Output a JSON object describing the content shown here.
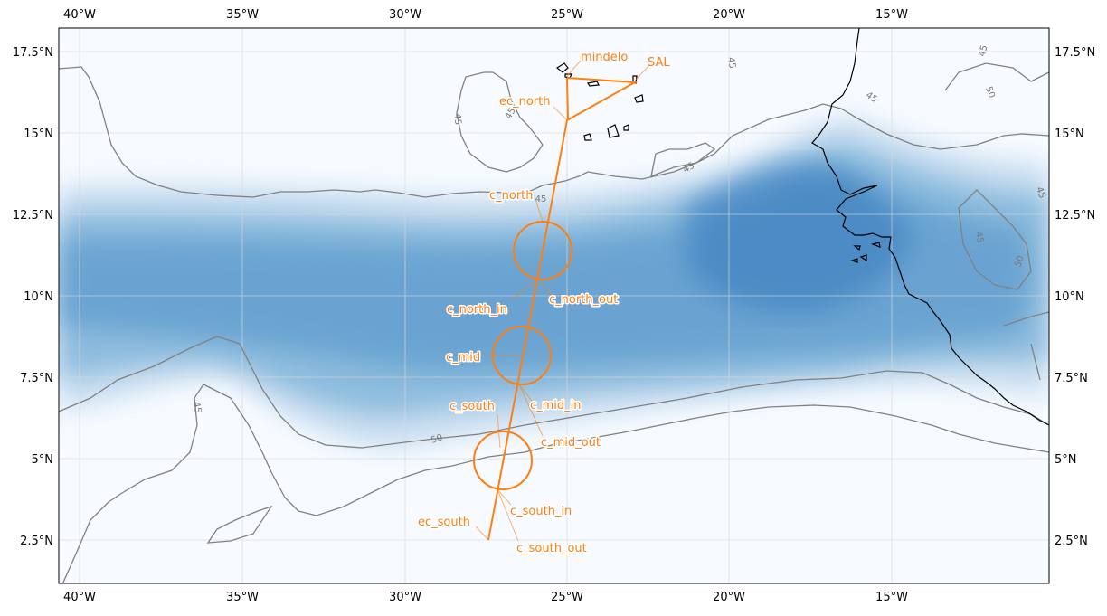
{
  "axes": {
    "x_ticks": [
      "40°W",
      "35°W",
      "30°W",
      "25°W",
      "20°W",
      "15°W"
    ],
    "y_ticks": [
      "2.5°N",
      "5°N",
      "7.5°N",
      "10°N",
      "12.5°N",
      "15°N",
      "17.5°N"
    ]
  },
  "contour_labels": [
    "45",
    "45",
    "45",
    "45",
    "45",
    "45",
    "45",
    "45",
    "50",
    "50",
    "50",
    "45",
    "45"
  ],
  "waypoints": {
    "mindelo": "mindelo",
    "sal": "SAL",
    "ec_north": "ec_north",
    "c_north": "c_north",
    "c_north_in": "c_north_in",
    "c_north_out": "c_north_out",
    "c_mid": "c_mid",
    "c_mid_in": "c_mid_in",
    "c_mid_out": "c_mid_out",
    "c_south": "c_south",
    "c_south_in": "c_south_in",
    "c_south_out": "c_south_out",
    "ec_south": "ec_south"
  },
  "colors": {
    "track": "#ff7f0e",
    "field_low": "#f7fbff",
    "field_high": "#2f76b6",
    "contour": "#808080",
    "coast": "#000000"
  },
  "map": {
    "lon_range": [
      -40.7,
      -10.2
    ],
    "lat_range": [
      1.2,
      18.3
    ],
    "projection": "PlateCarree",
    "gridlines": true
  }
}
